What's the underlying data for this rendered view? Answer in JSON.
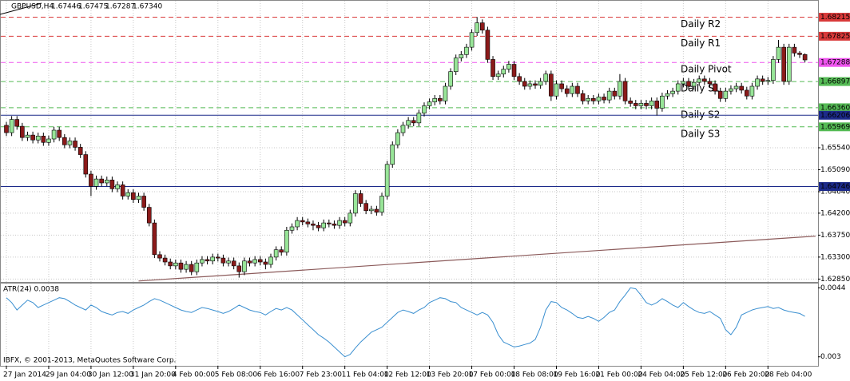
{
  "header": {
    "symbol": "GBPUSD,H4",
    "quote": [
      "1.67446",
      "1.67475",
      "1.67287",
      "1.67340"
    ]
  },
  "copyright": "IBFX, © 2001-2013, MetaQuotes Software Corp.",
  "chart_data": {
    "type": "candlestick",
    "categories": [
      "27 Jan 2014",
      null,
      null,
      null,
      null,
      null,
      null,
      null,
      "29 Jan 04:00",
      null,
      null,
      null,
      null,
      null,
      null,
      null,
      "30 Jan 12:00",
      null,
      null,
      null,
      null,
      null,
      null,
      null,
      "31 Jan 20:00",
      null,
      null,
      null,
      null,
      null,
      null,
      null,
      "4 Feb 00:00",
      null,
      null,
      null,
      null,
      null,
      null,
      null,
      "5 Feb 08:00",
      null,
      null,
      null,
      null,
      null,
      null,
      null,
      "6 Feb 16:00",
      null,
      null,
      null,
      null,
      null,
      null,
      null,
      "7 Feb 23:00",
      null,
      null,
      null,
      null,
      null,
      null,
      null,
      "11 Feb 04:00",
      null,
      null,
      null,
      null,
      null,
      null,
      null,
      "12 Feb 12:00",
      null,
      null,
      null,
      null,
      null,
      null,
      null,
      "13 Feb 20:00",
      null,
      null,
      null,
      null,
      null,
      null,
      null,
      "17 Feb 00:00",
      null,
      null,
      null,
      null,
      null,
      null,
      null,
      "18 Feb 08:00",
      null,
      null,
      null,
      null,
      null,
      null,
      null,
      "19 Feb 16:00",
      null,
      null,
      null,
      null,
      null,
      null,
      null,
      "21 Feb 00:00",
      null,
      null,
      null,
      null,
      null,
      null,
      null,
      "24 Feb 04:00",
      null,
      null,
      null,
      null,
      null,
      null,
      null,
      "25 Feb 12:00",
      null,
      null,
      null,
      null,
      null,
      null,
      null,
      "26 Feb 20:00",
      null,
      null,
      null,
      null,
      null,
      null,
      null,
      "28 Feb 04:00",
      null,
      null,
      null,
      null,
      null,
      null,
      null
    ],
    "open": [
      1.66,
      1.6585,
      1.6612,
      1.6598,
      1.6575,
      1.658,
      1.657,
      1.6578,
      1.6565,
      1.6572,
      1.659,
      1.6575,
      1.656,
      1.6568,
      1.6555,
      1.654,
      1.65,
      1.6475,
      1.649,
      1.6482,
      1.6488,
      1.647,
      1.6478,
      1.6455,
      1.6462,
      1.6448,
      1.6455,
      1.6432,
      1.64,
      1.6335,
      1.6328,
      1.632,
      1.6312,
      1.6318,
      1.6305,
      1.6315,
      1.63,
      1.6318,
      1.6325,
      1.6322,
      1.633,
      1.6328,
      1.6318,
      1.6322,
      1.6312,
      1.63,
      1.6322,
      1.6318,
      1.6325,
      1.632,
      1.6315,
      1.633,
      1.6345,
      1.634,
      1.6385,
      1.6392,
      1.6405,
      1.6402,
      1.6398,
      1.6395,
      1.639,
      1.64,
      1.6398,
      1.6395,
      1.6405,
      1.64,
      1.642,
      1.646,
      1.644,
      1.6425,
      1.6428,
      1.6422,
      1.6455,
      1.652,
      1.656,
      1.6585,
      1.66,
      1.661,
      1.6605,
      1.6625,
      1.664,
      1.6648,
      1.6655,
      1.665,
      1.668,
      1.671,
      1.6738,
      1.6745,
      1.676,
      1.679,
      1.681,
      1.6795,
      1.6735,
      1.67,
      1.6705,
      1.6715,
      1.6725,
      1.67,
      1.669,
      1.668,
      1.6685,
      1.6682,
      1.669,
      1.6705,
      1.666,
      1.6685,
      1.6675,
      1.6665,
      1.668,
      1.6665,
      1.665,
      1.6655,
      1.665,
      1.6658,
      1.6652,
      1.667,
      1.666,
      1.669,
      1.665,
      1.6645,
      1.664,
      1.6645,
      1.664,
      1.665,
      1.6635,
      1.666,
      1.6665,
      1.667,
      1.6685,
      1.669,
      1.668,
      1.6688,
      1.6695,
      1.669,
      1.6685,
      1.667,
      1.6655,
      1.667,
      1.6675,
      1.668,
      1.6672,
      1.666,
      1.668,
      1.6695,
      1.669,
      1.6692,
      1.6735,
      1.676,
      1.669,
      1.676,
      1.6748,
      1.6745
    ],
    "high": [
      1.6607,
      1.6619,
      1.6619,
      1.6605,
      1.6587,
      1.6587,
      1.6585,
      1.6585,
      1.6579,
      1.6597,
      1.6597,
      1.6582,
      1.6575,
      1.6575,
      1.6562,
      1.6547,
      1.6507,
      1.6497,
      1.6497,
      1.6495,
      1.6495,
      1.6485,
      1.6485,
      1.6469,
      1.6469,
      1.6462,
      1.6462,
      1.6439,
      1.6407,
      1.6342,
      1.6335,
      1.6327,
      1.6325,
      1.6325,
      1.6322,
      1.6322,
      1.6325,
      1.6332,
      1.6332,
      1.6337,
      1.6337,
      1.6335,
      1.6329,
      1.6329,
      1.6319,
      1.6329,
      1.6329,
      1.6332,
      1.6332,
      1.6327,
      1.6337,
      1.6352,
      1.6352,
      1.6392,
      1.6399,
      1.6412,
      1.6412,
      1.6409,
      1.6405,
      1.6402,
      1.6407,
      1.6407,
      1.6405,
      1.6412,
      1.6412,
      1.6427,
      1.6467,
      1.6467,
      1.6447,
      1.6435,
      1.6435,
      1.6462,
      1.6527,
      1.6567,
      1.6592,
      1.6607,
      1.6617,
      1.6617,
      1.6632,
      1.6647,
      1.6655,
      1.6662,
      1.6662,
      1.6687,
      1.6717,
      1.6745,
      1.6752,
      1.6767,
      1.6797,
      1.6822,
      1.6817,
      1.6802,
      1.6742,
      1.6712,
      1.6722,
      1.6732,
      1.6732,
      1.6707,
      1.6697,
      1.6692,
      1.6692,
      1.6697,
      1.6712,
      1.6712,
      1.6692,
      1.6692,
      1.6682,
      1.6687,
      1.6687,
      1.6672,
      1.6662,
      1.6662,
      1.6665,
      1.6665,
      1.6677,
      1.6677,
      1.6705,
      1.6697,
      1.6657,
      1.6652,
      1.6652,
      1.6652,
      1.6657,
      1.6657,
      1.6667,
      1.6672,
      1.6677,
      1.6692,
      1.6697,
      1.6697,
      1.6695,
      1.6702,
      1.6702,
      1.6697,
      1.6692,
      1.6677,
      1.6677,
      1.6682,
      1.6687,
      1.6687,
      1.6679,
      1.6687,
      1.6702,
      1.6702,
      1.6699,
      1.6742,
      1.6775,
      1.6767,
      1.6767,
      1.6767,
      1.6752,
      1.67475
    ],
    "low": [
      1.6578,
      1.6578,
      1.6591,
      1.6568,
      1.6568,
      1.6563,
      1.6563,
      1.6558,
      1.6558,
      1.6565,
      1.6568,
      1.6553,
      1.6553,
      1.6548,
      1.6533,
      1.6493,
      1.6455,
      1.6468,
      1.6475,
      1.6475,
      1.6463,
      1.6463,
      1.6448,
      1.6448,
      1.6441,
      1.6441,
      1.6425,
      1.6393,
      1.6328,
      1.6321,
      1.6313,
      1.6305,
      1.6305,
      1.6298,
      1.6298,
      1.6293,
      1.6293,
      1.6311,
      1.6315,
      1.6315,
      1.6321,
      1.6311,
      1.6311,
      1.6305,
      1.6288,
      1.6293,
      1.6311,
      1.6311,
      1.6313,
      1.6305,
      1.6308,
      1.6323,
      1.6333,
      1.6333,
      1.6378,
      1.6385,
      1.6395,
      1.6391,
      1.6385,
      1.6383,
      1.6383,
      1.6391,
      1.6388,
      1.6388,
      1.6393,
      1.6393,
      1.6413,
      1.6433,
      1.6418,
      1.6418,
      1.6415,
      1.6415,
      1.6448,
      1.6513,
      1.6553,
      1.6578,
      1.6593,
      1.6598,
      1.6598,
      1.6618,
      1.6633,
      1.6641,
      1.6643,
      1.6643,
      1.6673,
      1.6703,
      1.6731,
      1.6738,
      1.6753,
      1.6783,
      1.6788,
      1.6728,
      1.6693,
      1.6693,
      1.6698,
      1.6708,
      1.6693,
      1.6683,
      1.6673,
      1.6673,
      1.6675,
      1.6675,
      1.6683,
      1.665,
      1.6653,
      1.6668,
      1.6658,
      1.6658,
      1.6658,
      1.6643,
      1.6643,
      1.6643,
      1.6643,
      1.6645,
      1.6645,
      1.6653,
      1.6653,
      1.6643,
      1.6638,
      1.6633,
      1.6633,
      1.6633,
      1.6633,
      1.662,
      1.6628,
      1.6653,
      1.6658,
      1.6663,
      1.6678,
      1.6673,
      1.6673,
      1.6681,
      1.6683,
      1.6678,
      1.6663,
      1.6648,
      1.6648,
      1.6663,
      1.6668,
      1.6665,
      1.6653,
      1.6653,
      1.6673,
      1.6683,
      1.6683,
      1.6685,
      1.6728,
      1.6683,
      1.6683,
      1.6741,
      1.6738,
      1.67287
    ],
    "close": [
      1.6585,
      1.6612,
      1.6598,
      1.6575,
      1.658,
      1.657,
      1.6578,
      1.6565,
      1.6572,
      1.659,
      1.6575,
      1.656,
      1.6568,
      1.6555,
      1.654,
      1.65,
      1.6475,
      1.649,
      1.6482,
      1.6488,
      1.647,
      1.6478,
      1.6455,
      1.6462,
      1.6448,
      1.6455,
      1.6432,
      1.64,
      1.6335,
      1.6328,
      1.632,
      1.6312,
      1.6318,
      1.6305,
      1.6315,
      1.63,
      1.6318,
      1.6325,
      1.6322,
      1.633,
      1.6328,
      1.6318,
      1.6322,
      1.6312,
      1.63,
      1.6322,
      1.6318,
      1.6325,
      1.632,
      1.6315,
      1.633,
      1.6345,
      1.634,
      1.6385,
      1.6392,
      1.6405,
      1.6402,
      1.6398,
      1.6395,
      1.639,
      1.64,
      1.6398,
      1.6395,
      1.6405,
      1.64,
      1.642,
      1.646,
      1.644,
      1.6425,
      1.6428,
      1.6422,
      1.6455,
      1.652,
      1.656,
      1.6585,
      1.66,
      1.661,
      1.6605,
      1.6625,
      1.664,
      1.6648,
      1.6655,
      1.665,
      1.668,
      1.671,
      1.6738,
      1.6745,
      1.676,
      1.679,
      1.681,
      1.6795,
      1.6735,
      1.67,
      1.6705,
      1.6715,
      1.6725,
      1.67,
      1.669,
      1.668,
      1.6685,
      1.6682,
      1.669,
      1.6705,
      1.666,
      1.6685,
      1.6675,
      1.6665,
      1.668,
      1.6665,
      1.665,
      1.6655,
      1.665,
      1.6658,
      1.6652,
      1.667,
      1.666,
      1.669,
      1.665,
      1.6645,
      1.664,
      1.6645,
      1.664,
      1.665,
      1.6635,
      1.666,
      1.6665,
      1.667,
      1.6685,
      1.669,
      1.668,
      1.6688,
      1.6695,
      1.669,
      1.6685,
      1.667,
      1.6655,
      1.667,
      1.6675,
      1.668,
      1.6672,
      1.666,
      1.668,
      1.6695,
      1.669,
      1.6692,
      1.6735,
      1.676,
      1.669,
      1.676,
      1.6748,
      1.6745,
      1.6734
    ],
    "up_color": "#98e598",
    "down_color": "#8b1a1a",
    "wick_color": "#000000",
    "ylim": [
      1.62807,
      1.68535
    ],
    "yticks": [
      {
        "value": 1.6554,
        "label": "1.65540"
      },
      {
        "value": 1.6509,
        "label": "1.65090"
      },
      {
        "value": 1.6464,
        "label": "1.64640"
      },
      {
        "value": 1.642,
        "label": "1.64200"
      },
      {
        "value": 1.6375,
        "label": "1.63750"
      },
      {
        "value": 1.633,
        "label": "1.63300"
      },
      {
        "value": 1.6285,
        "label": "1.62850"
      }
    ],
    "grid": true,
    "levels": [
      {
        "name": "Daily R2",
        "value": 1.68215,
        "value_label": "1.68215",
        "color": "#d93a3a",
        "label_color": "#d93a3a",
        "style": "dashed"
      },
      {
        "name": "Daily R1",
        "value": 1.67825,
        "value_label": "1.67825",
        "color": "#d93a3a",
        "label_color": "#d93a3a",
        "style": "dashed"
      },
      {
        "name": "Daily Pivot",
        "value": 1.67288,
        "value_label": "1.67288",
        "color": "#ee55ee",
        "label_color": "#cc33cc",
        "style": "dashed"
      },
      {
        "name": "Daily S1",
        "value": 1.66897,
        "value_label": "1.66897",
        "color": "#55bb55",
        "label_color": "#2a3580",
        "style": "dashed"
      },
      {
        "name": "Daily S2",
        "value": 1.6636,
        "value_label": "1.66360",
        "color": "#55bb55",
        "label_color": "#2a3580",
        "style": "dashed"
      },
      {
        "value": 1.66206,
        "value_label": "1.66206",
        "color": "#1c2a8a",
        "style": "solid"
      },
      {
        "name": "Daily S3",
        "value": 1.65969,
        "value_label": "1.65969",
        "color": "#55bb55",
        "label_color": "#2a3580",
        "style": "dashed"
      },
      {
        "value": 1.64746,
        "value_label": "1.64746",
        "color": "#1c2a8a",
        "style": "solid"
      }
    ],
    "trend_line": {
      "x": [
        25,
        153
      ],
      "values": [
        1.6281,
        1.6373
      ],
      "color": "#8b5a5a"
    },
    "indicator": {
      "type": "line",
      "title": "ATR(24) 0.0038",
      "color": "#3a8fd0",
      "ylim": [
        0.00285,
        0.00447
      ],
      "yticks": [
        0.0044,
        0.003
      ],
      "values": [
        0.0042,
        0.0041,
        0.00395,
        0.00405,
        0.00415,
        0.0041,
        0.004,
        0.00405,
        0.0041,
        0.00415,
        0.0042,
        0.00418,
        0.00412,
        0.00405,
        0.004,
        0.00395,
        0.00405,
        0.004,
        0.00392,
        0.00388,
        0.00385,
        0.0039,
        0.00392,
        0.00388,
        0.00395,
        0.004,
        0.00405,
        0.00412,
        0.00418,
        0.00415,
        0.0041,
        0.00405,
        0.004,
        0.00395,
        0.00392,
        0.0039,
        0.00395,
        0.004,
        0.00398,
        0.00395,
        0.00392,
        0.00388,
        0.00392,
        0.00398,
        0.00405,
        0.004,
        0.00395,
        0.00392,
        0.0039,
        0.00385,
        0.00392,
        0.00398,
        0.00395,
        0.004,
        0.00395,
        0.00385,
        0.00375,
        0.00365,
        0.00355,
        0.00345,
        0.00338,
        0.0033,
        0.0032,
        0.0031,
        0.003,
        0.00305,
        0.00318,
        0.0033,
        0.0034,
        0.0035,
        0.00355,
        0.0036,
        0.0037,
        0.0038,
        0.0039,
        0.00395,
        0.00392,
        0.00388,
        0.00395,
        0.004,
        0.0041,
        0.00415,
        0.0042,
        0.00418,
        0.00412,
        0.0041,
        0.004,
        0.00395,
        0.0039,
        0.00385,
        0.0039,
        0.00385,
        0.0037,
        0.00345,
        0.0033,
        0.00325,
        0.0032,
        0.00322,
        0.00325,
        0.00328,
        0.00335,
        0.0036,
        0.00395,
        0.00412,
        0.0041,
        0.004,
        0.00395,
        0.00388,
        0.0038,
        0.00378,
        0.00382,
        0.00378,
        0.00372,
        0.0038,
        0.0039,
        0.00395,
        0.00412,
        0.00425,
        0.0044,
        0.00438,
        0.00425,
        0.0041,
        0.00405,
        0.0041,
        0.00418,
        0.00412,
        0.00405,
        0.004,
        0.0041,
        0.00402,
        0.00395,
        0.0039,
        0.00388,
        0.00392,
        0.00385,
        0.00378,
        0.00355,
        0.00345,
        0.0036,
        0.00385,
        0.0039,
        0.00395,
        0.00398,
        0.004,
        0.00402,
        0.00398,
        0.004,
        0.00395,
        0.00392,
        0.0039,
        0.00388,
        0.00382
      ]
    }
  }
}
